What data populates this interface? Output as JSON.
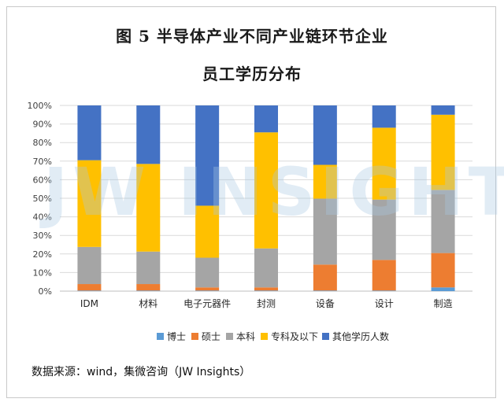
{
  "title_line1": "图 5  半导体产业不同产业链环节企业",
  "title_line2": "员工学历分布",
  "watermark": "JW INSIGHTS",
  "source": "数据来源：wind，集微咨询（JW Insights）",
  "chart_data": {
    "type": "bar",
    "stacked": true,
    "normalized": true,
    "title": "图 5  半导体产业不同产业链环节企业员工学历分布",
    "categories": [
      "IDM",
      "材料",
      "电子元器件",
      "封测",
      "设备",
      "设计",
      "制造"
    ],
    "series": [
      {
        "name": "博士",
        "color": "#5B9BD5",
        "values": [
          0.3,
          0.3,
          0.3,
          0.3,
          0.3,
          0.3,
          2.0
        ]
      },
      {
        "name": "硕士",
        "color": "#ED7D31",
        "values": [
          3.5,
          3.5,
          1.7,
          1.7,
          14.0,
          16.5,
          18.5
        ]
      },
      {
        "name": "本科",
        "color": "#A5A5A5",
        "values": [
          20.0,
          17.5,
          16.0,
          21.0,
          35.5,
          32.5,
          34.0
        ]
      },
      {
        "name": "专科及以下",
        "color": "#FFC000",
        "values": [
          46.7,
          47.2,
          28.0,
          62.5,
          18.2,
          38.7,
          40.5
        ]
      },
      {
        "name": "其他学历人数",
        "color": "#4472C4",
        "values": [
          29.5,
          31.5,
          54.0,
          14.5,
          32.0,
          12.0,
          5.0
        ]
      }
    ],
    "yticks": [
      "0%",
      "10%",
      "20%",
      "30%",
      "40%",
      "50%",
      "60%",
      "70%",
      "80%",
      "90%",
      "100%"
    ],
    "ylim": [
      0,
      100
    ],
    "legend": "bottom",
    "grid": true
  }
}
